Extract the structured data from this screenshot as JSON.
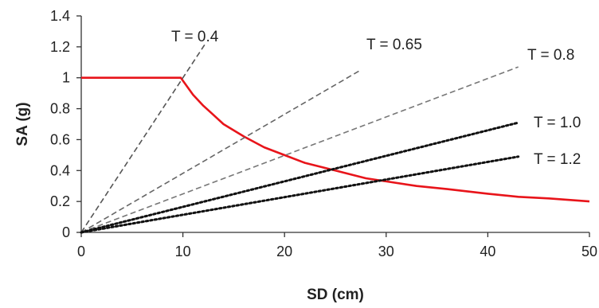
{
  "chart_data": {
    "type": "line",
    "xlabel": "SD (cm)",
    "ylabel": "SA (g)",
    "xlim": [
      0,
      50
    ],
    "ylim": [
      0,
      1.4
    ],
    "x_ticks": [
      "0",
      "10",
      "20",
      "30",
      "40",
      "50"
    ],
    "y_ticks": [
      "0",
      "0.2",
      "0.4",
      "0.6",
      "0.8",
      "1",
      "1.2",
      "1.4"
    ],
    "grid": false,
    "legend": "none",
    "series": [
      {
        "color": "#e8141a",
        "style": "solid",
        "x": [
          0,
          5,
          9.8,
          11,
          12,
          13,
          14,
          16,
          18,
          20,
          22,
          25,
          28,
          30,
          33,
          36,
          40,
          43,
          46,
          50
        ],
        "y": [
          1.0,
          1.0,
          1.0,
          0.89,
          0.82,
          0.76,
          0.7,
          0.62,
          0.55,
          0.5,
          0.45,
          0.4,
          0.35,
          0.33,
          0.3,
          0.28,
          0.25,
          0.23,
          0.22,
          0.2
        ]
      },
      {
        "label": "T = 0.4",
        "color": "#555555",
        "style": "dashed",
        "x": [
          0,
          12.2
        ],
        "y": [
          0,
          1.22
        ]
      },
      {
        "label": "T = 0.65",
        "color": "#666666",
        "style": "dashed",
        "x": [
          0,
          27.5
        ],
        "y": [
          0,
          1.05
        ]
      },
      {
        "label": "T = 0.8",
        "color": "#777777",
        "style": "dashed",
        "x": [
          0,
          43
        ],
        "y": [
          0,
          1.07
        ]
      },
      {
        "label": "T = 1.0",
        "color": "#111111",
        "style": "dotted",
        "x": [
          0,
          43
        ],
        "y": [
          0,
          0.71
        ]
      },
      {
        "label": "T = 1.2",
        "color": "#111111",
        "style": "dotted",
        "x": [
          0,
          43
        ],
        "y": [
          0,
          0.49
        ]
      }
    ],
    "period_labels": [
      {
        "text": "T = 0.4"
      },
      {
        "text": "T = 0.65"
      },
      {
        "text": "T = 0.8"
      },
      {
        "text": "T = 1.0"
      },
      {
        "text": "T = 1.2"
      }
    ]
  }
}
